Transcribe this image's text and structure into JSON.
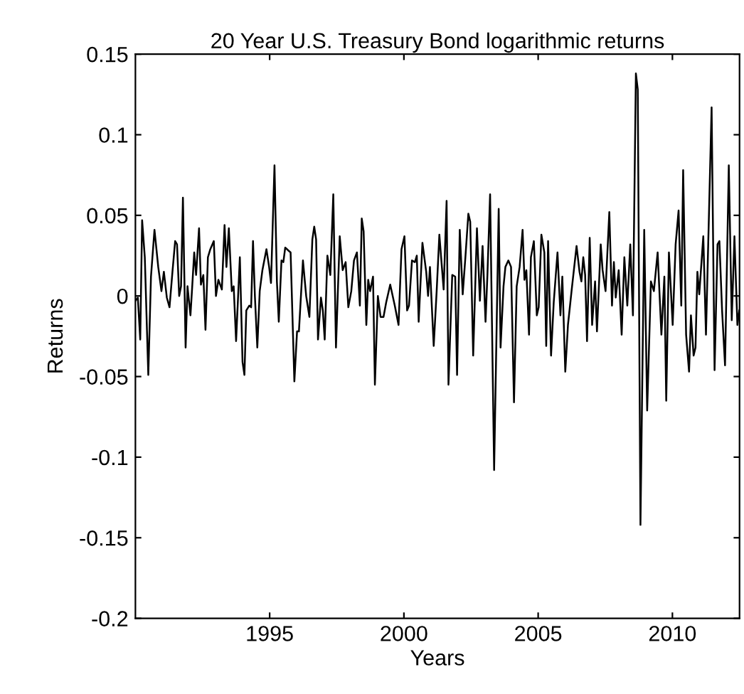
{
  "chart_data": {
    "type": "line",
    "title": "20 Year U.S. Treasury Bond logarithmic returns",
    "xlabel": "Years",
    "ylabel": "Returns",
    "xlim": [
      1990,
      2012.5
    ],
    "ylim": [
      -0.2,
      0.15
    ],
    "xticks": [
      1995,
      2000,
      2005,
      2010
    ],
    "yticks": [
      -0.2,
      -0.15,
      -0.1,
      -0.05,
      0,
      0.05,
      0.1,
      0.15
    ],
    "grid": false,
    "legend": false,
    "marker": "none",
    "line_style": "solid",
    "series": [
      {
        "color": "#000000",
        "x": [
          1990.0,
          1990.09,
          1990.18,
          1990.25,
          1990.35,
          1990.48,
          1990.58,
          1990.71,
          1990.85,
          1990.97,
          1991.06,
          1991.17,
          1991.27,
          1991.38,
          1991.48,
          1991.55,
          1991.63,
          1991.7,
          1991.77,
          1991.87,
          1991.94,
          1992.05,
          1992.12,
          1992.19,
          1992.26,
          1992.37,
          1992.44,
          1992.53,
          1992.61,
          1992.7,
          1992.79,
          1992.92,
          1993.0,
          1993.09,
          1993.22,
          1993.32,
          1993.39,
          1993.48,
          1993.59,
          1993.66,
          1993.75,
          1993.89,
          1993.99,
          1994.06,
          1994.13,
          1994.24,
          1994.31,
          1994.38,
          1994.45,
          1994.54,
          1994.63,
          1994.73,
          1994.88,
          1994.98,
          1995.05,
          1995.18,
          1995.27,
          1995.34,
          1995.44,
          1995.51,
          1995.58,
          1995.71,
          1995.78,
          1995.92,
          1996.02,
          1996.09,
          1996.24,
          1996.36,
          1996.48,
          1996.59,
          1996.66,
          1996.73,
          1996.8,
          1996.91,
          1996.98,
          1997.05,
          1997.15,
          1997.26,
          1997.37,
          1997.47,
          1997.61,
          1997.72,
          1997.83,
          1997.93,
          1998.04,
          1998.14,
          1998.25,
          1998.36,
          1998.43,
          1998.5,
          1998.6,
          1998.67,
          1998.74,
          1998.85,
          1998.92,
          1999.03,
          1999.13,
          1999.24,
          1999.34,
          1999.49,
          1999.66,
          1999.8,
          1999.91,
          2000.02,
          2000.12,
          2000.19,
          2000.3,
          2000.41,
          2000.48,
          2000.55,
          2000.69,
          2000.83,
          2000.9,
          2000.97,
          2001.11,
          2001.22,
          2001.32,
          2001.48,
          2001.59,
          2001.66,
          2001.8,
          2001.91,
          2001.98,
          2002.08,
          2002.19,
          2002.29,
          2002.4,
          2002.47,
          2002.58,
          2002.72,
          2002.83,
          2002.93,
          2003.04,
          2003.11,
          2003.21,
          2003.36,
          2003.53,
          2003.6,
          2003.71,
          2003.78,
          2003.89,
          2003.99,
          2004.1,
          2004.2,
          2004.31,
          2004.42,
          2004.49,
          2004.56,
          2004.66,
          2004.73,
          2004.84,
          2004.95,
          2005.02,
          2005.12,
          2005.23,
          2005.3,
          2005.37,
          2005.48,
          2005.58,
          2005.72,
          2005.83,
          2005.9,
          2006.01,
          2006.11,
          2006.25,
          2006.43,
          2006.54,
          2006.61,
          2006.68,
          2006.75,
          2006.82,
          2006.92,
          2007.01,
          2007.12,
          2007.19,
          2007.33,
          2007.4,
          2007.51,
          2007.65,
          2007.75,
          2007.82,
          2007.89,
          2008.0,
          2008.11,
          2008.21,
          2008.32,
          2008.43,
          2008.53,
          2008.64,
          2008.71,
          2008.81,
          2008.95,
          2009.06,
          2009.2,
          2009.31,
          2009.45,
          2009.59,
          2009.7,
          2009.77,
          2009.87,
          2010.01,
          2010.12,
          2010.23,
          2010.33,
          2010.4,
          2010.51,
          2010.62,
          2010.69,
          2010.79,
          2010.86,
          2010.93,
          2011.0,
          2011.15,
          2011.25,
          2011.46,
          2011.57,
          2011.68,
          2011.75,
          2011.85,
          2011.96,
          2012.1,
          2012.21,
          2012.31,
          2012.42,
          2012.49
        ],
        "values": [
          -0.003,
          -0.001,
          -0.027,
          0.047,
          0.024,
          -0.049,
          0.012,
          0.041,
          0.018,
          0.003,
          0.015,
          -0.001,
          -0.007,
          0.015,
          0.034,
          0.032,
          0.0,
          0.006,
          0.061,
          -0.032,
          0.006,
          -0.012,
          0.007,
          0.027,
          0.013,
          0.042,
          0.007,
          0.013,
          -0.021,
          0.024,
          0.029,
          0.034,
          0.0,
          0.01,
          0.004,
          0.044,
          0.018,
          0.042,
          0.003,
          0.006,
          -0.028,
          0.024,
          -0.041,
          -0.049,
          -0.009,
          -0.006,
          -0.007,
          0.034,
          0.0,
          -0.032,
          0.003,
          0.016,
          0.029,
          0.018,
          0.008,
          0.081,
          0.009,
          -0.016,
          0.022,
          0.021,
          0.03,
          0.028,
          0.027,
          -0.053,
          -0.022,
          -0.022,
          0.022,
          0.0,
          -0.013,
          0.035,
          0.043,
          0.035,
          -0.027,
          -0.001,
          -0.009,
          -0.027,
          0.025,
          0.013,
          0.063,
          -0.032,
          0.037,
          0.016,
          0.021,
          -0.007,
          0.003,
          0.022,
          0.027,
          -0.006,
          0.048,
          0.04,
          -0.018,
          0.01,
          0.003,
          0.012,
          -0.055,
          0.0,
          -0.013,
          -0.013,
          -0.004,
          0.007,
          -0.006,
          -0.018,
          0.029,
          0.037,
          -0.009,
          -0.006,
          0.022,
          0.021,
          0.025,
          -0.016,
          0.033,
          0.015,
          0.0,
          0.018,
          -0.031,
          0.003,
          0.038,
          0.004,
          0.059,
          -0.055,
          0.013,
          0.012,
          -0.049,
          0.041,
          0.001,
          0.024,
          0.051,
          0.046,
          -0.037,
          0.042,
          -0.003,
          0.031,
          -0.016,
          0.013,
          0.063,
          -0.108,
          0.054,
          -0.032,
          0.006,
          0.018,
          0.022,
          0.018,
          -0.066,
          0.006,
          0.018,
          0.041,
          0.01,
          0.016,
          -0.024,
          0.024,
          0.034,
          -0.012,
          -0.007,
          0.038,
          0.027,
          -0.031,
          0.034,
          -0.037,
          -0.004,
          0.027,
          -0.012,
          0.012,
          -0.047,
          -0.018,
          0.004,
          0.031,
          0.015,
          0.009,
          0.024,
          0.013,
          -0.028,
          0.036,
          -0.018,
          0.009,
          -0.022,
          0.032,
          0.016,
          0.003,
          0.052,
          -0.006,
          0.021,
          -0.001,
          0.016,
          -0.024,
          0.024,
          -0.006,
          0.032,
          -0.012,
          0.138,
          0.128,
          -0.142,
          0.041,
          -0.071,
          0.009,
          0.003,
          0.027,
          -0.024,
          0.012,
          -0.065,
          0.027,
          -0.018,
          0.032,
          0.053,
          -0.006,
          0.078,
          -0.024,
          -0.047,
          -0.012,
          -0.037,
          -0.032,
          0.015,
          0.001,
          0.037,
          -0.024,
          0.117,
          -0.046,
          0.032,
          0.034,
          -0.009,
          -0.043,
          0.081,
          -0.015,
          0.037,
          -0.018,
          -0.009
        ]
      }
    ]
  }
}
